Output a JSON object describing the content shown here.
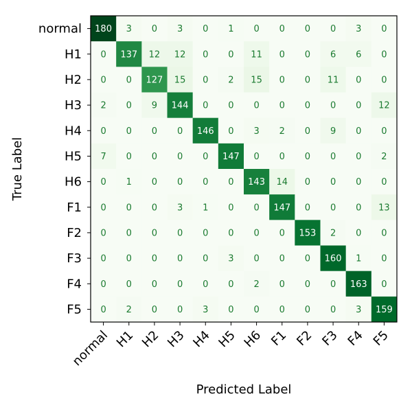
{
  "chart_data": {
    "type": "heatmap",
    "title": "",
    "xlabel": "Predicted Label",
    "ylabel": "True Label",
    "x_categories": [
      "normal",
      "H1",
      "H2",
      "H3",
      "H4",
      "H5",
      "H6",
      "F1",
      "F2",
      "F3",
      "F4",
      "F5"
    ],
    "y_categories": [
      "normal",
      "H1",
      "H2",
      "H3",
      "H4",
      "H5",
      "H6",
      "F1",
      "F2",
      "F3",
      "F4",
      "F5"
    ],
    "matrix": [
      [
        180,
        3,
        0,
        3,
        0,
        1,
        0,
        0,
        0,
        0,
        3,
        0
      ],
      [
        0,
        137,
        12,
        12,
        0,
        0,
        11,
        0,
        0,
        6,
        6,
        0
      ],
      [
        0,
        0,
        127,
        15,
        0,
        2,
        15,
        0,
        0,
        11,
        0,
        0
      ],
      [
        2,
        0,
        9,
        144,
        0,
        0,
        0,
        0,
        0,
        0,
        0,
        12
      ],
      [
        0,
        0,
        0,
        0,
        146,
        0,
        3,
        2,
        0,
        9,
        0,
        0
      ],
      [
        7,
        0,
        0,
        0,
        0,
        147,
        0,
        0,
        0,
        0,
        0,
        2
      ],
      [
        0,
        1,
        0,
        0,
        0,
        0,
        143,
        14,
        0,
        0,
        0,
        0
      ],
      [
        0,
        0,
        0,
        3,
        1,
        0,
        0,
        147,
        0,
        0,
        0,
        13
      ],
      [
        0,
        0,
        0,
        0,
        0,
        0,
        0,
        0,
        153,
        2,
        0,
        0
      ],
      [
        0,
        0,
        0,
        0,
        0,
        3,
        0,
        0,
        0,
        160,
        1,
        0
      ],
      [
        0,
        0,
        0,
        0,
        0,
        0,
        2,
        0,
        0,
        0,
        163,
        0
      ],
      [
        0,
        2,
        0,
        0,
        3,
        0,
        0,
        0,
        0,
        0,
        3,
        159
      ]
    ],
    "colormap": "Greens",
    "value_range": [
      0,
      180
    ],
    "colors": {
      "low": "#f7fcf5",
      "high": "#00441b",
      "text_light": "#ffffff",
      "text_dark": "#1a7a2f"
    },
    "grid": false,
    "colorbar": false
  }
}
